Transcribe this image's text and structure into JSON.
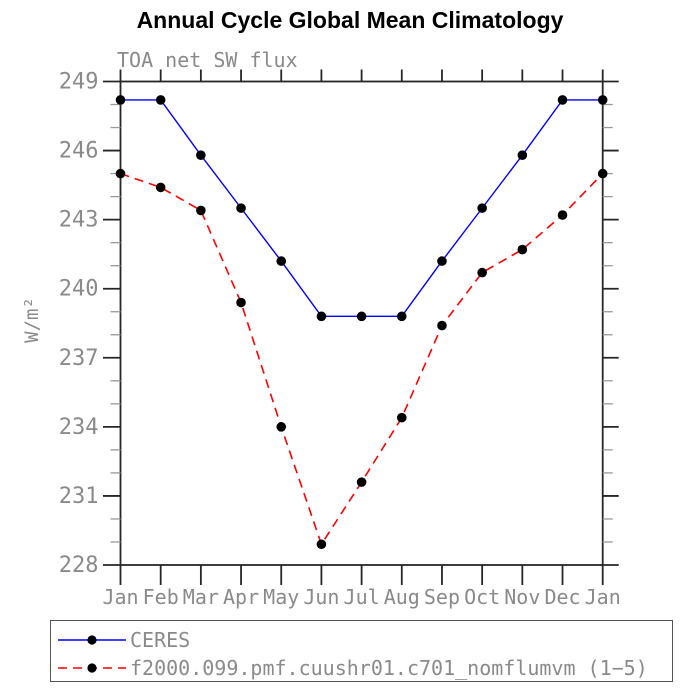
{
  "title": "Annual Cycle Global Mean Climatology",
  "chart_data": {
    "type": "line",
    "title": "Annual Cycle Global Mean Climatology",
    "subtitle": "TOA net SW flux",
    "xlabel": "",
    "ylabel": "W/m²",
    "categories": [
      "Jan",
      "Feb",
      "Mar",
      "Apr",
      "May",
      "Jun",
      "Jul",
      "Aug",
      "Sep",
      "Oct",
      "Nov",
      "Dec",
      "Jan"
    ],
    "ylim": [
      228,
      249
    ],
    "ytick_major": [
      228,
      231,
      234,
      237,
      240,
      243,
      246,
      249
    ],
    "ytick_minor_step": 1,
    "grid": false,
    "legend_position": "bottom-box",
    "series": [
      {
        "id": "ceres",
        "name": "CERES",
        "color": "#0000ff",
        "line_style": "solid",
        "marker": "filled-circle",
        "marker_color": "#000000",
        "values": [
          248.2,
          248.2,
          245.8,
          243.5,
          241.2,
          238.8,
          238.8,
          238.8,
          241.2,
          243.5,
          245.8,
          248.2,
          248.2
        ]
      },
      {
        "id": "model",
        "name": "f2000.099.pmf.cuushr01.c701_nomflumvm (1−5)",
        "color": "#ff0000",
        "line_style": "dashed",
        "marker": "filled-circle",
        "marker_color": "#000000",
        "values": [
          245.0,
          244.4,
          243.4,
          239.4,
          234.0,
          228.9,
          231.6,
          234.4,
          238.4,
          240.7,
          241.7,
          243.2,
          245.0
        ]
      }
    ]
  },
  "colors": {
    "background": "#ffffff",
    "axis": "#262626",
    "minor_tick": "#999999",
    "label_gray": "#8a8a8a",
    "title_text": "#000000",
    "legend_border": "#555555",
    "marker": "#000000",
    "ceres_blue": "#0000ff",
    "model_red": "#ff0000"
  }
}
